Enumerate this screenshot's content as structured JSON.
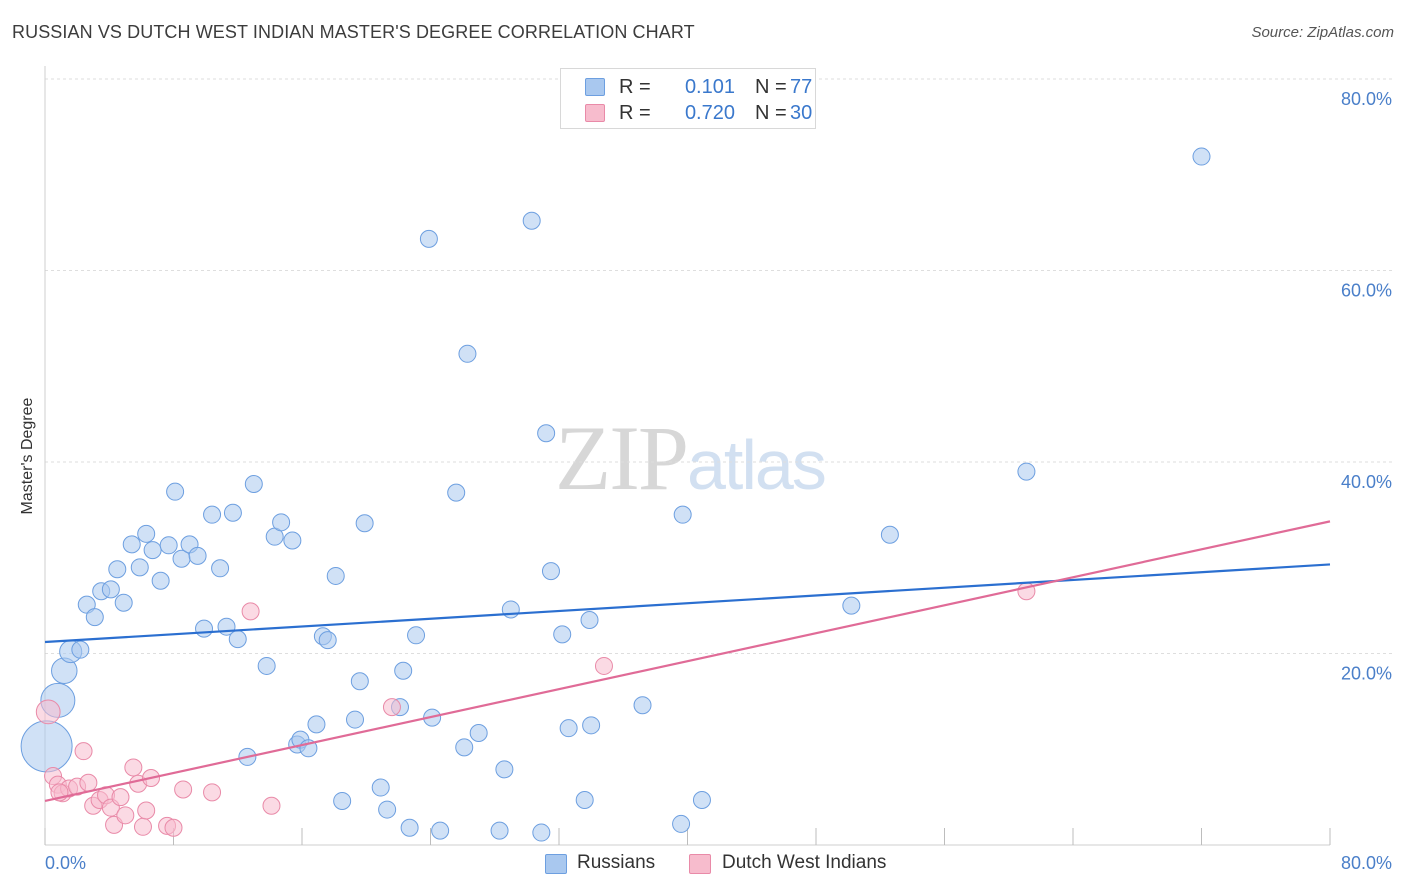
{
  "title": "RUSSIAN VS DUTCH WEST INDIAN MASTER'S DEGREE CORRELATION CHART",
  "source": "Source: ZipAtlas.com",
  "watermark": {
    "part1": "ZIP",
    "part2": "atlas"
  },
  "legend_top": [
    {
      "swatch_color": "#a9c8ef",
      "swatch_border": "#6d9fe0",
      "r_label": "R =",
      "r_value": "0.101",
      "n_label": "N =",
      "n_value": "77"
    },
    {
      "swatch_color": "#f7bccd",
      "swatch_border": "#e98aa8",
      "r_label": "R =",
      "r_value": "0.720",
      "n_label": "N =",
      "n_value": "30"
    }
  ],
  "legend_bottom": [
    {
      "label": "Russians",
      "swatch_color": "#a9c8ef",
      "swatch_border": "#6d9fe0"
    },
    {
      "label": "Dutch West Indians",
      "swatch_color": "#f7bccd",
      "swatch_border": "#e98aa8"
    }
  ],
  "chart_data": {
    "type": "scatter",
    "title": "RUSSIAN VS DUTCH WEST INDIAN MASTER'S DEGREE CORRELATION CHART",
    "xlabel": "",
    "ylabel": "Master's Degree",
    "xlim": [
      0,
      80
    ],
    "ylim": [
      0,
      80
    ],
    "x_tick_labels": [
      "0.0%",
      "80.0%"
    ],
    "y_ticks": [
      20,
      40,
      60,
      80
    ],
    "y_tick_labels": [
      "20.0%",
      "40.0%",
      "60.0%",
      "80.0%"
    ],
    "grid": true,
    "series": [
      {
        "name": "Russians",
        "color": "#6d9fe0",
        "fill": "#a9c8ef",
        "trend_color": "#2b6fd0",
        "trend": {
          "x": [
            0,
            80
          ],
          "y": [
            21.2,
            29.3
          ]
        },
        "points": [
          {
            "x": 0.1,
            "y": 10.3,
            "s": 3
          },
          {
            "x": 0.8,
            "y": 15.1,
            "s": 2
          },
          {
            "x": 1.2,
            "y": 18.2,
            "s": 1.5
          },
          {
            "x": 1.6,
            "y": 20.2,
            "s": 1.3
          },
          {
            "x": 2.2,
            "y": 20.4
          },
          {
            "x": 2.6,
            "y": 25.1
          },
          {
            "x": 3.1,
            "y": 23.8
          },
          {
            "x": 3.5,
            "y": 26.5
          },
          {
            "x": 4.1,
            "y": 26.7
          },
          {
            "x": 4.5,
            "y": 28.8
          },
          {
            "x": 4.9,
            "y": 25.3
          },
          {
            "x": 5.4,
            "y": 31.4
          },
          {
            "x": 5.9,
            "y": 29.0
          },
          {
            "x": 6.3,
            "y": 32.5
          },
          {
            "x": 6.7,
            "y": 30.8
          },
          {
            "x": 7.2,
            "y": 27.6
          },
          {
            "x": 7.7,
            "y": 31.3
          },
          {
            "x": 8.1,
            "y": 36.9
          },
          {
            "x": 8.5,
            "y": 29.9
          },
          {
            "x": 9.0,
            "y": 31.4
          },
          {
            "x": 9.5,
            "y": 30.2
          },
          {
            "x": 9.9,
            "y": 22.6
          },
          {
            "x": 10.4,
            "y": 34.5
          },
          {
            "x": 10.9,
            "y": 28.9
          },
          {
            "x": 11.3,
            "y": 22.8
          },
          {
            "x": 11.7,
            "y": 34.7
          },
          {
            "x": 12.0,
            "y": 21.5
          },
          {
            "x": 12.6,
            "y": 9.2
          },
          {
            "x": 13.0,
            "y": 37.7
          },
          {
            "x": 13.8,
            "y": 18.7
          },
          {
            "x": 14.3,
            "y": 32.2
          },
          {
            "x": 14.7,
            "y": 33.7
          },
          {
            "x": 15.4,
            "y": 31.8
          },
          {
            "x": 15.7,
            "y": 10.5
          },
          {
            "x": 15.9,
            "y": 11.0
          },
          {
            "x": 16.4,
            "y": 10.1
          },
          {
            "x": 16.9,
            "y": 12.6
          },
          {
            "x": 17.3,
            "y": 21.8
          },
          {
            "x": 17.6,
            "y": 21.4
          },
          {
            "x": 18.1,
            "y": 28.1
          },
          {
            "x": 18.5,
            "y": 4.6
          },
          {
            "x": 19.3,
            "y": 13.1
          },
          {
            "x": 19.6,
            "y": 17.1
          },
          {
            "x": 19.9,
            "y": 33.6
          },
          {
            "x": 20.9,
            "y": 6.0
          },
          {
            "x": 21.3,
            "y": 3.7
          },
          {
            "x": 22.1,
            "y": 14.4
          },
          {
            "x": 22.3,
            "y": 18.2
          },
          {
            "x": 22.7,
            "y": 1.8
          },
          {
            "x": 23.1,
            "y": 21.9
          },
          {
            "x": 23.9,
            "y": 63.3
          },
          {
            "x": 24.1,
            "y": 13.3
          },
          {
            "x": 24.6,
            "y": 1.5
          },
          {
            "x": 25.6,
            "y": 36.8
          },
          {
            "x": 26.1,
            "y": 10.2
          },
          {
            "x": 26.3,
            "y": 51.3
          },
          {
            "x": 27.0,
            "y": 11.7
          },
          {
            "x": 28.3,
            "y": 1.5
          },
          {
            "x": 28.6,
            "y": 7.9
          },
          {
            "x": 29.0,
            "y": 24.6
          },
          {
            "x": 30.3,
            "y": 65.2
          },
          {
            "x": 30.9,
            "y": 1.3
          },
          {
            "x": 31.2,
            "y": 43.0
          },
          {
            "x": 31.5,
            "y": 28.6
          },
          {
            "x": 32.2,
            "y": 22.0
          },
          {
            "x": 32.6,
            "y": 12.2
          },
          {
            "x": 33.6,
            "y": 4.7
          },
          {
            "x": 33.9,
            "y": 23.5
          },
          {
            "x": 34.0,
            "y": 12.5
          },
          {
            "x": 37.2,
            "y": 14.6
          },
          {
            "x": 39.6,
            "y": 2.2
          },
          {
            "x": 39.7,
            "y": 34.5
          },
          {
            "x": 40.9,
            "y": 4.7
          },
          {
            "x": 50.2,
            "y": 25.0
          },
          {
            "x": 52.6,
            "y": 32.4
          },
          {
            "x": 61.1,
            "y": 39.0
          },
          {
            "x": 72.0,
            "y": 71.9
          }
        ]
      },
      {
        "name": "Dutch West Indians",
        "color": "#e98aa8",
        "fill": "#f7bccd",
        "trend_color": "#e06b97",
        "trend": {
          "x": [
            0,
            80
          ],
          "y": [
            4.6,
            33.8
          ]
        },
        "points": [
          {
            "x": 0.2,
            "y": 13.9,
            "s": 1.4
          },
          {
            "x": 0.5,
            "y": 7.2
          },
          {
            "x": 0.8,
            "y": 6.3
          },
          {
            "x": 1.1,
            "y": 5.4
          },
          {
            "x": 1.5,
            "y": 5.9
          },
          {
            "x": 2.0,
            "y": 6.1
          },
          {
            "x": 2.4,
            "y": 9.8
          },
          {
            "x": 2.7,
            "y": 6.5
          },
          {
            "x": 3.0,
            "y": 4.1
          },
          {
            "x": 3.4,
            "y": 4.7
          },
          {
            "x": 3.8,
            "y": 5.2
          },
          {
            "x": 4.1,
            "y": 3.9
          },
          {
            "x": 4.3,
            "y": 2.1
          },
          {
            "x": 4.7,
            "y": 5.0
          },
          {
            "x": 5.0,
            "y": 3.1
          },
          {
            "x": 5.5,
            "y": 8.1
          },
          {
            "x": 5.8,
            "y": 6.4
          },
          {
            "x": 6.1,
            "y": 1.9
          },
          {
            "x": 6.3,
            "y": 3.6
          },
          {
            "x": 6.6,
            "y": 7.0
          },
          {
            "x": 7.6,
            "y": 2.0
          },
          {
            "x": 8.0,
            "y": 1.8
          },
          {
            "x": 8.6,
            "y": 5.8
          },
          {
            "x": 10.4,
            "y": 5.5
          },
          {
            "x": 12.8,
            "y": 24.4
          },
          {
            "x": 14.1,
            "y": 4.1
          },
          {
            "x": 21.6,
            "y": 14.4
          },
          {
            "x": 34.8,
            "y": 18.7
          },
          {
            "x": 61.1,
            "y": 26.5
          },
          {
            "x": 0.9,
            "y": 5.5
          }
        ]
      }
    ]
  }
}
